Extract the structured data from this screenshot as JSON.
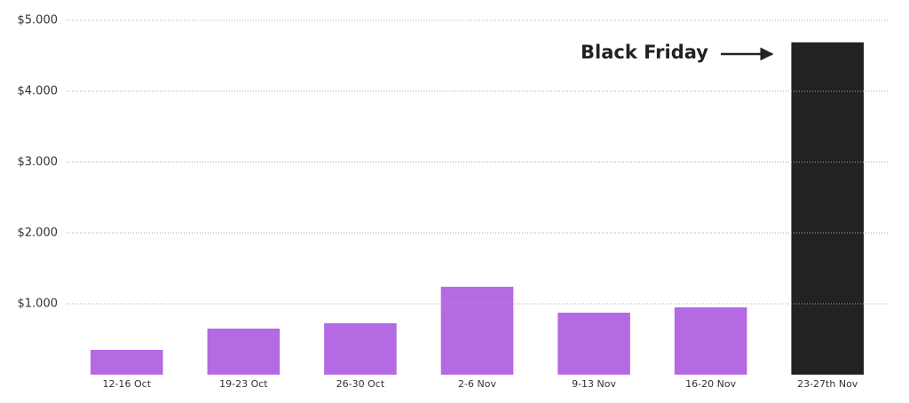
{
  "chart_data": {
    "type": "bar",
    "categories": [
      "12-16 Oct",
      "19-23 Oct",
      "26-30 Oct",
      "2-6 Nov",
      "9-13 Nov",
      "16-20 Nov",
      "23-27th Nov"
    ],
    "values": [
      350,
      650,
      725,
      1240,
      875,
      950,
      4690
    ],
    "colors": [
      "#b36ae2",
      "#b36ae2",
      "#b36ae2",
      "#b36ae2",
      "#b36ae2",
      "#b36ae2",
      "#222222"
    ],
    "ylim": [
      0,
      5000
    ],
    "yticks": [
      {
        "value": 1000,
        "label": "$1.000"
      },
      {
        "value": 2000,
        "label": "$2.000"
      },
      {
        "value": 3000,
        "label": "$3.000"
      },
      {
        "value": 4000,
        "label": "$4.000"
      },
      {
        "value": 5000,
        "label": "$5.000"
      }
    ],
    "grid": true,
    "annotation": "Black Friday"
  }
}
